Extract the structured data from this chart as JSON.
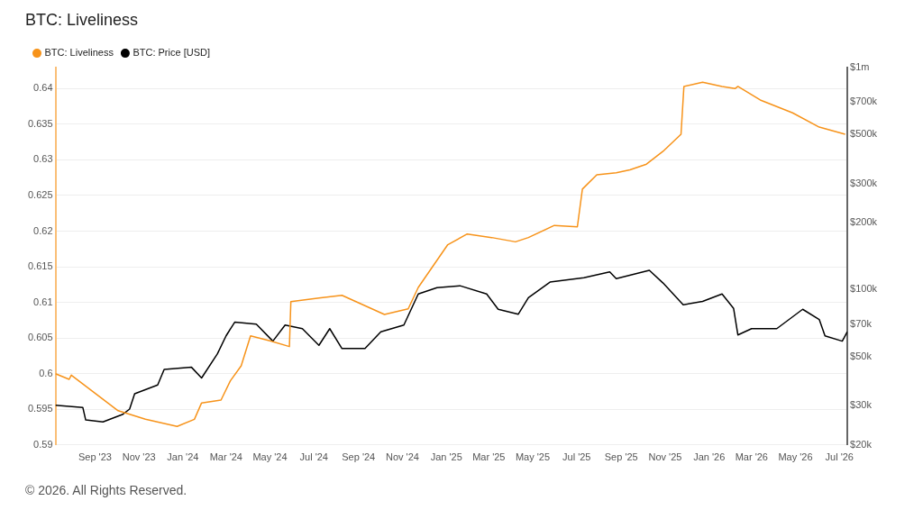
{
  "chart_data": {
    "type": "line",
    "title": "BTC: Liveliness",
    "xlim": [
      "2023-07-08",
      "2026-07-12"
    ],
    "xticks": [
      {
        "value": "2023-09-01",
        "label": "Sep '23"
      },
      {
        "value": "2023-11-01",
        "label": "Nov '23"
      },
      {
        "value": "2024-01-01",
        "label": "Jan '24"
      },
      {
        "value": "2024-03-01",
        "label": "Mar '24"
      },
      {
        "value": "2024-05-01",
        "label": "May '24"
      },
      {
        "value": "2024-07-01",
        "label": "Jul '24"
      },
      {
        "value": "2024-09-01",
        "label": "Sep '24"
      },
      {
        "value": "2024-11-01",
        "label": "Nov '24"
      },
      {
        "value": "2025-01-01",
        "label": "Jan '25"
      },
      {
        "value": "2025-03-01",
        "label": "Mar '25"
      },
      {
        "value": "2025-05-01",
        "label": "May '25"
      },
      {
        "value": "2025-07-01",
        "label": "Jul '25"
      },
      {
        "value": "2025-09-01",
        "label": "Sep '25"
      },
      {
        "value": "2025-11-01",
        "label": "Nov '25"
      },
      {
        "value": "2026-01-01",
        "label": "Jan '26"
      },
      {
        "value": "2026-03-01",
        "label": "Mar '26"
      },
      {
        "value": "2026-05-01",
        "label": "May '26"
      },
      {
        "value": "2026-07-01",
        "label": "Jul '26"
      }
    ],
    "ylim": [
      0.59,
      0.643
    ],
    "yticks": [
      0.59,
      0.595,
      0.6,
      0.605,
      0.61,
      0.615,
      0.62,
      0.625,
      0.63,
      0.635,
      0.64
    ],
    "y2lim": [
      20000,
      1000000
    ],
    "y2ticks": [
      {
        "value": 20000,
        "label": "$20k"
      },
      {
        "value": 30000,
        "label": "$30k"
      },
      {
        "value": 50000,
        "label": "$50k"
      },
      {
        "value": 70000,
        "label": "$70k"
      },
      {
        "value": 100000,
        "label": "$100k"
      },
      {
        "value": 200000,
        "label": "$200k"
      },
      {
        "value": 300000,
        "label": "$300k"
      },
      {
        "value": 500000,
        "label": "$500k"
      },
      {
        "value": 700000,
        "label": "$700k"
      },
      {
        "value": 1000000,
        "label": "$1m"
      }
    ],
    "log": "y2",
    "grid": "y",
    "legend": "top left",
    "marker": "none",
    "line_style": "solid",
    "annotations": [
      "© 2026. All Rights Reserved."
    ],
    "series": [
      {
        "name": "BTC: Liveliness",
        "color": "#f7931a",
        "x": [
          "2023-07-08",
          "2023-07-27",
          "2023-07-30",
          "2023-10-03",
          "2023-11-10",
          "2023-12-24",
          "2024-01-17",
          "2024-01-27",
          "2024-02-23",
          "2024-03-07",
          "2024-03-22",
          "2024-04-04",
          "2024-05-01",
          "2024-05-28",
          "2024-05-30",
          "2024-07-08",
          "2024-08-09",
          "2024-10-07",
          "2024-11-09",
          "2024-11-23",
          "2025-01-03",
          "2025-01-30",
          "2025-03-05",
          "2025-04-07",
          "2025-04-25",
          "2025-05-31",
          "2025-07-02",
          "2025-07-09",
          "2025-07-29",
          "2025-08-25",
          "2025-09-13",
          "2025-10-06",
          "2025-10-29",
          "2025-11-23",
          "2025-11-27",
          "2025-12-23",
          "2026-01-19",
          "2026-02-06",
          "2026-02-10",
          "2026-03-13",
          "2026-04-27",
          "2026-06-03",
          "2026-07-09"
        ],
        "values": [
          0.6,
          0.5992,
          0.5998,
          0.5948,
          0.5936,
          0.5926,
          0.5936,
          0.5959,
          0.5963,
          0.599,
          0.6011,
          0.6053,
          0.6046,
          0.6038,
          0.6101,
          0.6106,
          0.611,
          0.6083,
          0.6091,
          0.6121,
          0.6181,
          0.6196,
          0.6191,
          0.6185,
          0.6191,
          0.6208,
          0.6206,
          0.6259,
          0.6279,
          0.6282,
          0.6286,
          0.6294,
          0.6312,
          0.6336,
          0.6403,
          0.6409,
          0.6403,
          0.64,
          0.6403,
          0.6384,
          0.6366,
          0.6346,
          0.6336
        ]
      },
      {
        "name": "BTC: Price [USD]",
        "color": "#000000",
        "axis": "y2",
        "x": [
          "2023-07-08",
          "2023-08-15",
          "2023-08-19",
          "2023-09-12",
          "2023-10-09",
          "2023-10-19",
          "2023-10-26",
          "2023-11-27",
          "2023-12-06",
          "2024-01-13",
          "2024-01-27",
          "2024-02-18",
          "2024-03-01",
          "2024-03-13",
          "2024-04-12",
          "2024-05-05",
          "2024-05-22",
          "2024-06-15",
          "2024-07-08",
          "2024-07-23",
          "2024-08-09",
          "2024-09-10",
          "2024-10-02",
          "2024-11-03",
          "2024-11-23",
          "2024-12-19",
          "2025-01-20",
          "2025-02-26",
          "2025-03-14",
          "2025-04-11",
          "2025-04-25",
          "2025-05-25",
          "2025-07-11",
          "2025-08-16",
          "2025-08-25",
          "2025-10-10",
          "2025-10-29",
          "2025-11-26",
          "2025-12-23",
          "2026-01-19",
          "2026-02-04",
          "2026-02-10",
          "2026-03-01",
          "2026-04-05",
          "2026-05-11",
          "2026-06-03",
          "2026-06-11",
          "2026-07-05",
          "2026-07-12"
        ],
        "values": [
          30200,
          29500,
          25900,
          25400,
          27400,
          29000,
          34000,
          37200,
          43700,
          44700,
          40000,
          51400,
          61900,
          71300,
          69900,
          58600,
          69200,
          66700,
          56100,
          66700,
          54300,
          54300,
          64600,
          69200,
          95500,
          102000,
          104000,
          95500,
          81500,
          77500,
          92000,
          108000,
          113000,
          120000,
          112000,
          122000,
          107000,
          85400,
          88400,
          95500,
          82300,
          62500,
          66700,
          66700,
          81500,
          73300,
          61900,
          58600,
          64600
        ]
      }
    ]
  }
}
